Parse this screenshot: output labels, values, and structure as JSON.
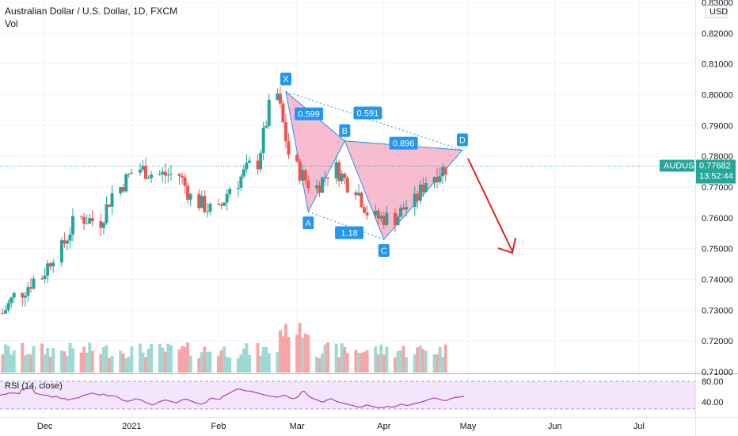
{
  "header": {
    "title": "Australian Dollar / U.S. Dollar, 1D, FXCM",
    "vol_label": "Vol"
  },
  "price_axis": {
    "currency": "USD",
    "ticks": [
      "0.83000",
      "0.82000",
      "0.81000",
      "0.80000",
      "0.79000",
      "0.78000",
      "0.77000",
      "0.76000",
      "0.75000",
      "0.74000",
      "0.73000",
      "0.72000",
      "0.71000"
    ],
    "current_symbol": "AUDUSD",
    "current_price": "0.77682",
    "countdown": "13:52:44"
  },
  "rsi": {
    "label": "RSI (14, close)",
    "ticks": [
      "80.00",
      "40.00"
    ]
  },
  "time_axis": {
    "ticks": [
      "Dec",
      "2021",
      "Feb",
      "Mar",
      "Apr",
      "May",
      "Jun",
      "Jul"
    ]
  },
  "colors": {
    "up": "#26a69a",
    "down": "#ef5350",
    "vol_up": "#9fd9d3",
    "vol_down": "#f5a6a6",
    "pattern_fill": "#f4a6bf",
    "pattern_label": "#2196f3",
    "arrow": "#e02020",
    "rsi_line": "#9c27b0",
    "rsi_band": "#f3e5fb",
    "price_tag": "#26a69a"
  },
  "chart_data": {
    "type": "candlestick",
    "title": "Australian Dollar / U.S. Dollar, 1D, FXCM",
    "series_name": "AUDUSD",
    "x_categories": [
      "Dec",
      "2021",
      "Feb",
      "Mar",
      "Apr",
      "May",
      "Jun",
      "Jul"
    ],
    "ylim": [
      0.71,
      0.83
    ],
    "close_path": [
      [
        "2020-11-16",
        0.729
      ],
      [
        "2020-11-23",
        0.736
      ],
      [
        "2020-11-30",
        0.741
      ],
      [
        "2020-12-07",
        0.75
      ],
      [
        "2020-12-14",
        0.76
      ],
      [
        "2020-12-21",
        0.759
      ],
      [
        "2020-12-28",
        0.77
      ],
      [
        "2021-01-04",
        0.776
      ],
      [
        "2021-01-11",
        0.774
      ],
      [
        "2021-01-18",
        0.774
      ],
      [
        "2021-01-25",
        0.765
      ],
      [
        "2021-02-01",
        0.762
      ],
      [
        "2021-02-08",
        0.772
      ],
      [
        "2021-02-15",
        0.778
      ],
      [
        "2021-02-22",
        0.8
      ],
      [
        "2021-03-01",
        0.776
      ],
      [
        "2021-03-08",
        0.77
      ],
      [
        "2021-03-15",
        0.776
      ],
      [
        "2021-03-22",
        0.77
      ],
      [
        "2021-03-29",
        0.76
      ],
      [
        "2021-04-05",
        0.76
      ],
      [
        "2021-04-12",
        0.765
      ],
      [
        "2021-04-19",
        0.774
      ],
      [
        "2021-04-26",
        0.7768
      ]
    ],
    "harmonic_pattern": {
      "points": [
        {
          "name": "X",
          "date": "2021-02-25",
          "price": 0.801
        },
        {
          "name": "A",
          "date": "2021-03-05",
          "price": 0.762
        },
        {
          "name": "B",
          "date": "2021-03-18",
          "price": 0.785
        },
        {
          "name": "C",
          "date": "2021-04-01",
          "price": 0.753
        },
        {
          "name": "D",
          "date": "2021-04-29",
          "price": 0.782
        }
      ],
      "ratios": [
        "0.599",
        "0.591",
        "0.896",
        "1.18"
      ]
    },
    "current_price": 0.77682,
    "volume_pane": true,
    "rsi": {
      "period": 14,
      "source": "close",
      "levels": [
        80,
        40
      ],
      "values": [
        60,
        61,
        61,
        63,
        63,
        63,
        63,
        62,
        68,
        69,
        70,
        70,
        69,
        63,
        62,
        61,
        60,
        60,
        59,
        57,
        58,
        58,
        56,
        55,
        55,
        53,
        54,
        55,
        56,
        56,
        59,
        60,
        61,
        62,
        63,
        62,
        61,
        60,
        62,
        60,
        59,
        59,
        59,
        58,
        56,
        53,
        52,
        51,
        52,
        53,
        55,
        54,
        53,
        51,
        49,
        48,
        46,
        47,
        49,
        51,
        52,
        53,
        52,
        51,
        50,
        49,
        51,
        53,
        54,
        54,
        52,
        51,
        49,
        48,
        47,
        48,
        50,
        54,
        56,
        55,
        54,
        54,
        58,
        60,
        62,
        64,
        66,
        68,
        69,
        68,
        67,
        66,
        66,
        65,
        64,
        63,
        62,
        61,
        60,
        59,
        58,
        58,
        57,
        58,
        59,
        60,
        58,
        56,
        55,
        56,
        58,
        64,
        66,
        62,
        58,
        56,
        54,
        53,
        51,
        50,
        52,
        54,
        55,
        53,
        51,
        50,
        49,
        48,
        47,
        46,
        45,
        44,
        43,
        43,
        44,
        46,
        45,
        44,
        43,
        42,
        42,
        42,
        43,
        44,
        43,
        43,
        44,
        46,
        47,
        46,
        45,
        46,
        47,
        48,
        49,
        50,
        51,
        52,
        54,
        55,
        56,
        55,
        54,
        53,
        52,
        53,
        55,
        56,
        57,
        57,
        58,
        58
      ]
    }
  }
}
